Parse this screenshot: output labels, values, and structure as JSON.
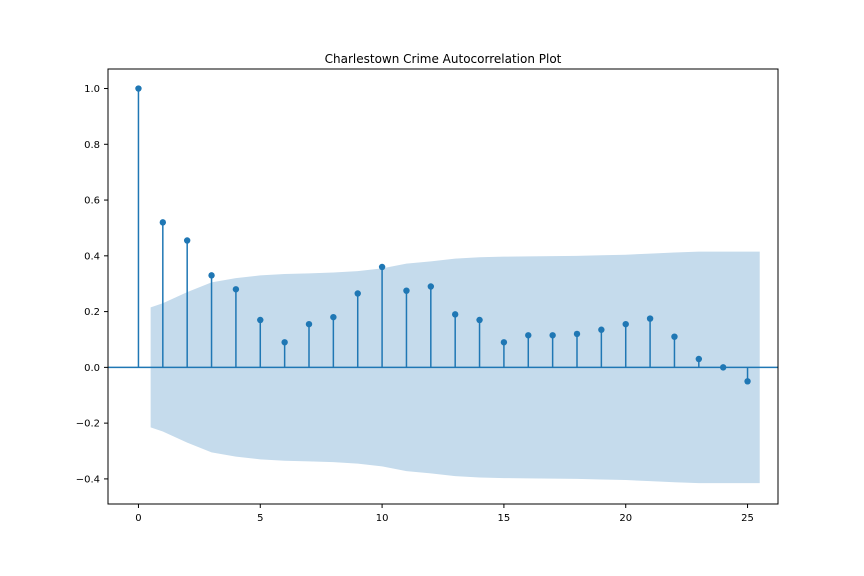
{
  "chart_data": {
    "type": "scatter",
    "subtype": "stem-autocorrelation",
    "title": "Charlestown Crime Autocorrelation Plot",
    "xlabel": "",
    "ylabel": "",
    "xlim": [
      -1.25,
      26.25
    ],
    "ylim": [
      -0.49,
      1.07
    ],
    "x_ticks": [
      0,
      5,
      10,
      15,
      20,
      25
    ],
    "x_tick_labels": [
      "0",
      "5",
      "10",
      "15",
      "20",
      "25"
    ],
    "y_ticks": [
      1.0,
      0.8,
      0.6,
      0.4,
      0.2,
      0.0,
      -0.2,
      -0.4
    ],
    "y_tick_labels": [
      "1.0",
      "0.8",
      "0.6",
      "0.4",
      "0.2",
      "0.0",
      "−0.2",
      "−0.4"
    ],
    "grid": false,
    "series": [
      {
        "x": [
          0,
          1,
          2,
          3,
          4,
          5,
          6,
          7,
          8,
          9,
          10,
          11,
          12,
          13,
          14,
          15,
          16,
          17,
          18,
          19,
          20,
          21,
          22,
          23,
          24,
          25
        ],
        "values": [
          1.0,
          0.52,
          0.455,
          0.33,
          0.28,
          0.17,
          0.09,
          0.155,
          0.18,
          0.265,
          0.36,
          0.275,
          0.29,
          0.19,
          0.17,
          0.09,
          0.115,
          0.115,
          0.12,
          0.135,
          0.155,
          0.175,
          0.11,
          0.03,
          0.0,
          -0.05
        ]
      }
    ],
    "confidence_band": {
      "x": [
        0.5,
        1,
        2,
        3,
        4,
        5,
        6,
        7,
        8,
        9,
        10,
        11,
        12,
        13,
        14,
        15,
        16,
        17,
        18,
        19,
        20,
        21,
        22,
        23,
        24,
        25.5
      ],
      "upper": [
        0.215,
        0.23,
        0.27,
        0.305,
        0.32,
        0.33,
        0.335,
        0.337,
        0.34,
        0.345,
        0.355,
        0.372,
        0.38,
        0.39,
        0.395,
        0.397,
        0.398,
        0.399,
        0.4,
        0.402,
        0.404,
        0.408,
        0.412,
        0.415,
        0.415,
        0.415
      ]
    },
    "colors": {
      "stem": "#1f77b4",
      "band": "#c5dbec",
      "zero_line": "#1f77b4",
      "axes": "#000000"
    }
  }
}
